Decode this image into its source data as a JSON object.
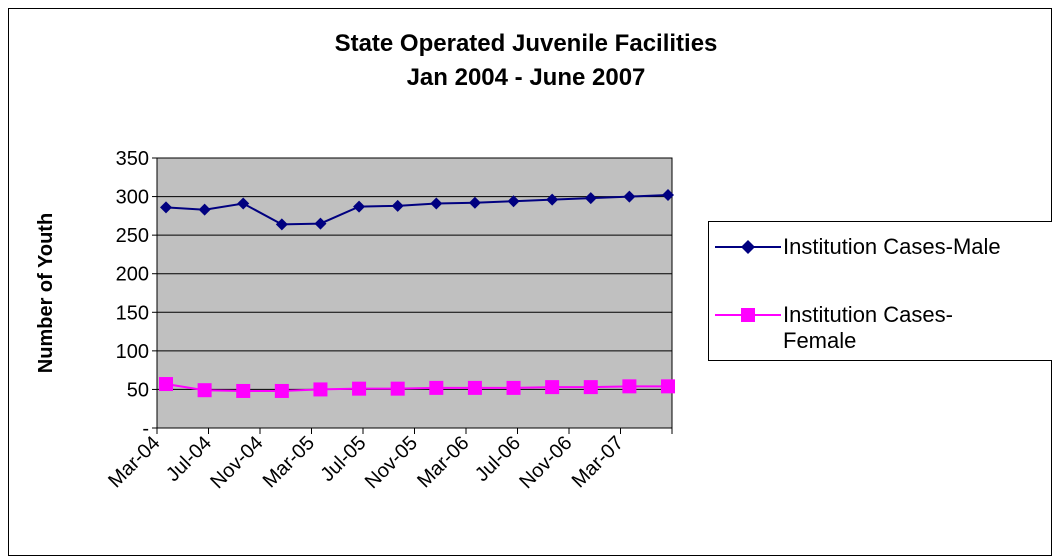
{
  "chart_data": {
    "type": "line",
    "title": "State Operated Juvenile Facilities",
    "subtitle": "Jan 2004 - June 2007",
    "ylabel": "Number of Youth",
    "xlabel": "",
    "ylim": [
      0,
      350
    ],
    "y_ticks": [
      "-",
      "50",
      "100",
      "150",
      "200",
      "250",
      "300",
      "350"
    ],
    "y_tick_values": [
      0,
      50,
      100,
      150,
      200,
      250,
      300,
      350
    ],
    "x_tick_labels": [
      "Mar-04",
      "Jul-04",
      "Nov-04",
      "Mar-05",
      "Jul-05",
      "Nov-05",
      "Mar-06",
      "Jul-06",
      "Nov-06",
      "Mar-07"
    ],
    "grid": true,
    "legend_position": "right",
    "plot_background": "#c0c0c0",
    "series": [
      {
        "name": "Institution Cases-Male",
        "color": "#000080",
        "marker": "diamond",
        "values": [
          286,
          283,
          291,
          264,
          265,
          287,
          288,
          291,
          292,
          294,
          296,
          298,
          300,
          302
        ]
      },
      {
        "name": "Institution Cases-Female",
        "legend_lines": [
          "Institution Cases-",
          "Female"
        ],
        "color": "#ff00ff",
        "marker": "square",
        "values": [
          57,
          49,
          48,
          48,
          50,
          51,
          51,
          52,
          52,
          52,
          53,
          53,
          54,
          54
        ]
      }
    ]
  }
}
